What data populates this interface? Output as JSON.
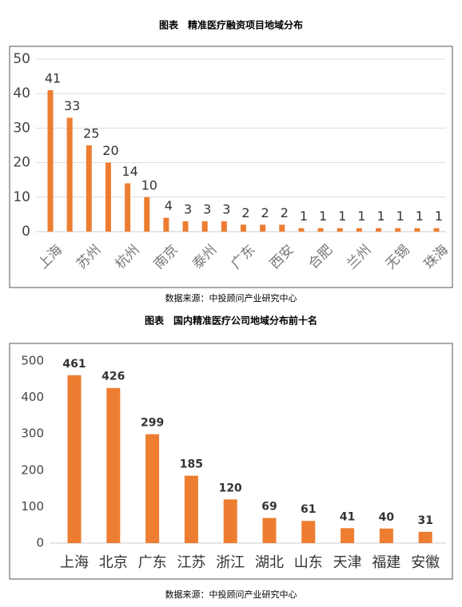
{
  "chart_data": [
    {
      "type": "bar",
      "title": "图表　精准医疗融资项目地域分布",
      "categories": [
        "上海",
        null,
        "苏州",
        null,
        "杭州",
        null,
        "南京",
        null,
        "泰州",
        null,
        "广东",
        null,
        "西安",
        null,
        "合肥",
        null,
        "兰州",
        null,
        "无锡",
        null,
        "珠海"
      ],
      "values": [
        41,
        33,
        25,
        20,
        14,
        10,
        4,
        3,
        3,
        3,
        2,
        2,
        2,
        1,
        1,
        1,
        1,
        1,
        1,
        1,
        1
      ],
      "color": "#ed7d31",
      "ylim": [
        0,
        50
      ],
      "yticks": [
        0,
        10,
        20,
        30,
        40,
        50
      ],
      "grid": true,
      "source": "数据来源：中投顾问产业研究中心"
    },
    {
      "type": "bar",
      "title": "图表　国内精准医疗公司地域分布前十名",
      "categories": [
        "上海",
        "北京",
        "广东",
        "江苏",
        "浙江",
        "湖北",
        "山东",
        "天津",
        "福建",
        "安徽"
      ],
      "values": [
        461,
        426,
        299,
        185,
        120,
        69,
        61,
        41,
        40,
        31
      ],
      "color": "#ed7d31",
      "ylim": [
        0,
        500
      ],
      "yticks": [
        0,
        100,
        200,
        300,
        400,
        500
      ],
      "grid": false,
      "source": "数据来源：中投顾问产业研究中心"
    }
  ]
}
